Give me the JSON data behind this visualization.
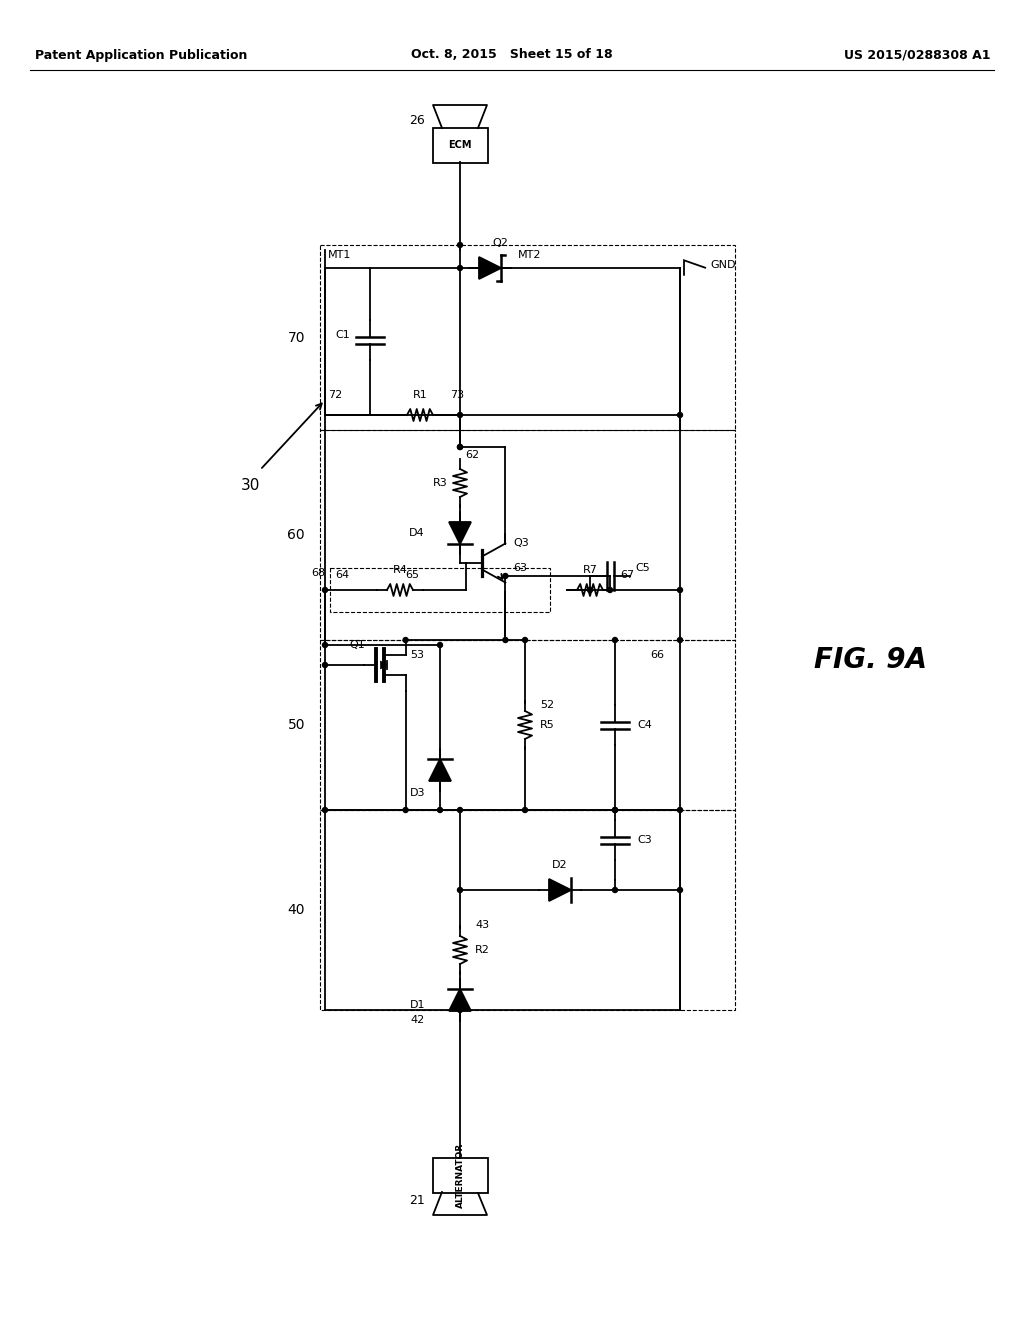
{
  "bg_color": "#ffffff",
  "lc": "#000000",
  "header_left": "Patent Application Publication",
  "header_center": "Oct. 8, 2015   Sheet 15 of 18",
  "header_right": "US 2015/0288308 A1",
  "fig_label": "FIG. 9A",
  "lw": 1.3
}
